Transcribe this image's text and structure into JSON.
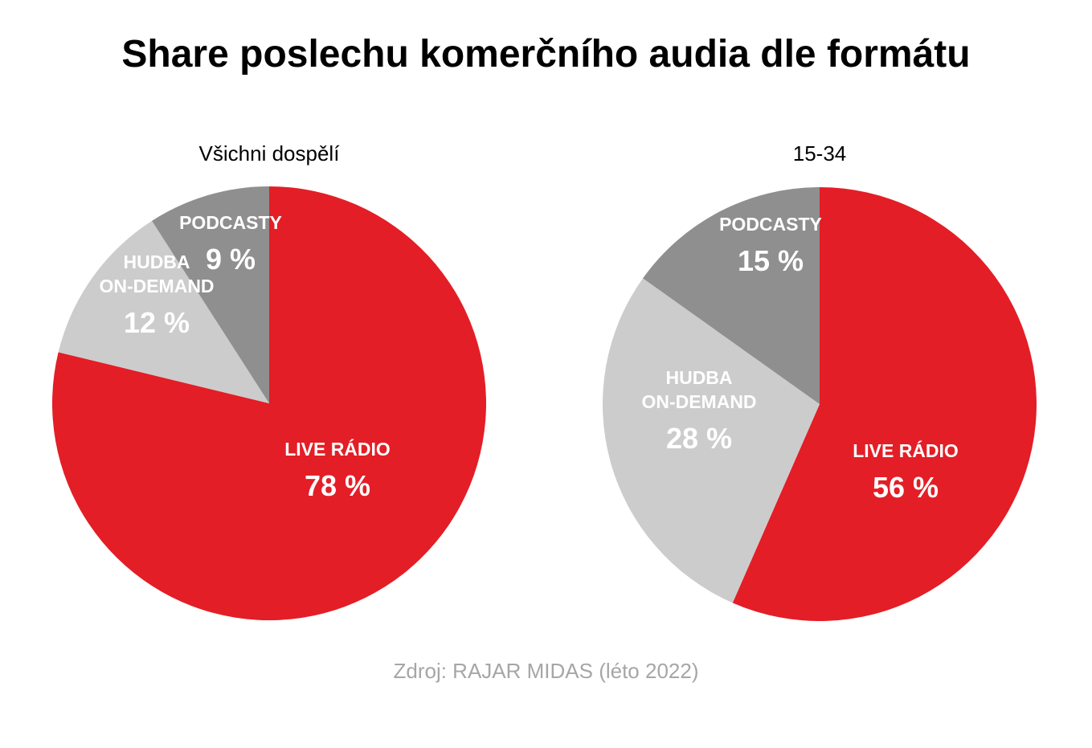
{
  "title": "Share poslechu komerčního audia dle formátu",
  "source": "Zdroj: RAJAR MIDAS (léto 2022)",
  "colors": {
    "live_radio": "#e31e26",
    "hudba": "#cccccc",
    "podcasty": "#8f8f8f"
  },
  "chart_data": [
    {
      "type": "pie",
      "title": "Všichni dospělí",
      "categories": [
        "LIVE RÁDIO",
        "HUDBA ON-DEMAND",
        "PODCASTY"
      ],
      "label_lines": [
        [
          "LIVE RÁDIO"
        ],
        [
          "HUDBA",
          "ON-DEMAND"
        ],
        [
          "PODCASTY"
        ]
      ],
      "values": [
        78,
        12,
        9
      ],
      "value_labels": [
        "78 %",
        "12 %",
        "9 %"
      ],
      "unit": "%",
      "start": "12 o'clock",
      "direction": "clockwise",
      "legend": "none"
    },
    {
      "type": "pie",
      "title": "15-34",
      "categories": [
        "LIVE RÁDIO",
        "HUDBA ON-DEMAND",
        "PODCASTY"
      ],
      "label_lines": [
        [
          "LIVE RÁDIO"
        ],
        [
          "HUDBA",
          "ON-DEMAND"
        ],
        [
          "PODCASTY"
        ]
      ],
      "values": [
        56,
        28,
        15
      ],
      "value_labels": [
        "56 %",
        "28 %",
        "15 %"
      ],
      "unit": "%",
      "start": "12 o'clock",
      "direction": "clockwise",
      "legend": "none"
    }
  ]
}
